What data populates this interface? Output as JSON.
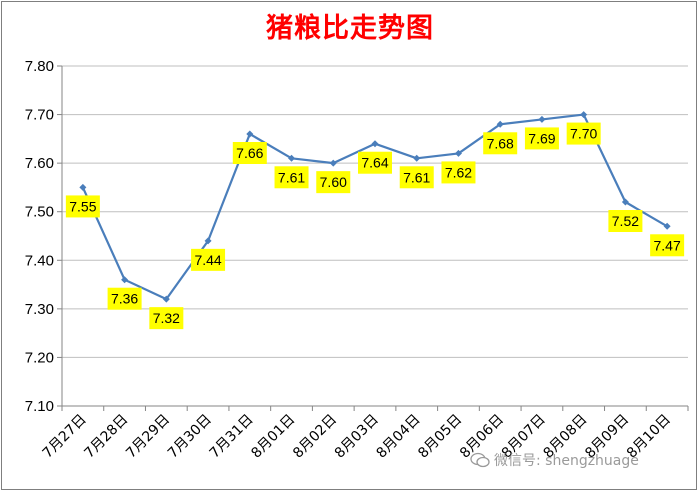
{
  "chart_data": {
    "type": "line",
    "title": "猪粮比走势图",
    "categories": [
      "7月27日",
      "7月28日",
      "7月29日",
      "7月30日",
      "7月31日",
      "8月01日",
      "8月02日",
      "8月03日",
      "8月04日",
      "8月05日",
      "8月06日",
      "8月07日",
      "8月08日",
      "8月09日",
      "8月10日"
    ],
    "values": [
      7.55,
      7.36,
      7.32,
      7.44,
      7.66,
      7.61,
      7.6,
      7.64,
      7.61,
      7.62,
      7.68,
      7.69,
      7.7,
      7.52,
      7.47
    ],
    "data_labels": [
      "7.55",
      "7.36",
      "7.32",
      "7.44",
      "7.66",
      "7.61",
      "7.60",
      "7.64",
      "7.61",
      "7.62",
      "7.68",
      "7.69",
      "7.70",
      "7.52",
      "7.47"
    ],
    "yticks": [
      "7.10",
      "7.20",
      "7.30",
      "7.40",
      "7.50",
      "7.60",
      "7.70",
      "7.80"
    ],
    "ylim": [
      7.1,
      7.8
    ],
    "xlabel": "",
    "ylabel": "",
    "grid": true,
    "legend": "none",
    "colors": {
      "line": "#4a7ebb",
      "marker": "#4a7ebb",
      "label_bg": "#ffff00",
      "grid": "#bfbfbf",
      "title": "#ff0000"
    }
  },
  "watermark": {
    "text": "微信号: shengzhuage"
  }
}
